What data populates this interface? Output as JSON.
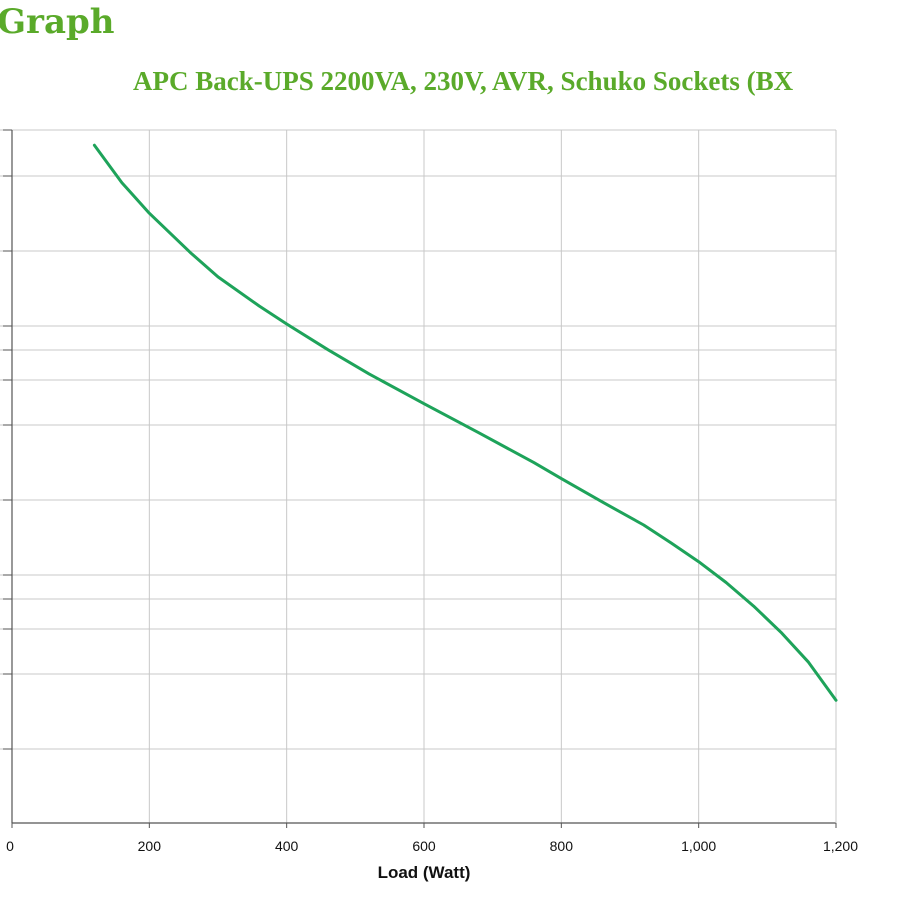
{
  "page": {
    "heading": "Graph",
    "accent_color": "#5aaa2a"
  },
  "chart_data": {
    "type": "line",
    "title": "APC Back-UPS 2200VA, 230V, AVR, Schuko Sockets (BX",
    "xlabel": "Load (Watt)",
    "ylabel": "",
    "xlim": [
      0,
      1200
    ],
    "x_ticks": [
      0,
      200,
      400,
      600,
      800,
      1000,
      1200
    ],
    "x_tick_labels": [
      "0",
      "200",
      "400",
      "600",
      "800",
      "1,000",
      "1,200"
    ],
    "grid": true,
    "legend": "none",
    "series": [
      {
        "color": "#1ea35a",
        "x": [
          120,
          160,
          200,
          260,
          300,
          360,
          400,
          460,
          520,
          600,
          680,
          760,
          800,
          860,
          920,
          960,
          1000,
          1040,
          1080,
          1120,
          1160,
          1200
        ],
        "y": [
          0.978,
          0.924,
          0.88,
          0.823,
          0.788,
          0.746,
          0.72,
          0.683,
          0.648,
          0.605,
          0.563,
          0.52,
          0.497,
          0.463,
          0.43,
          0.404,
          0.377,
          0.347,
          0.313,
          0.275,
          0.232,
          0.177
        ]
      }
    ]
  }
}
